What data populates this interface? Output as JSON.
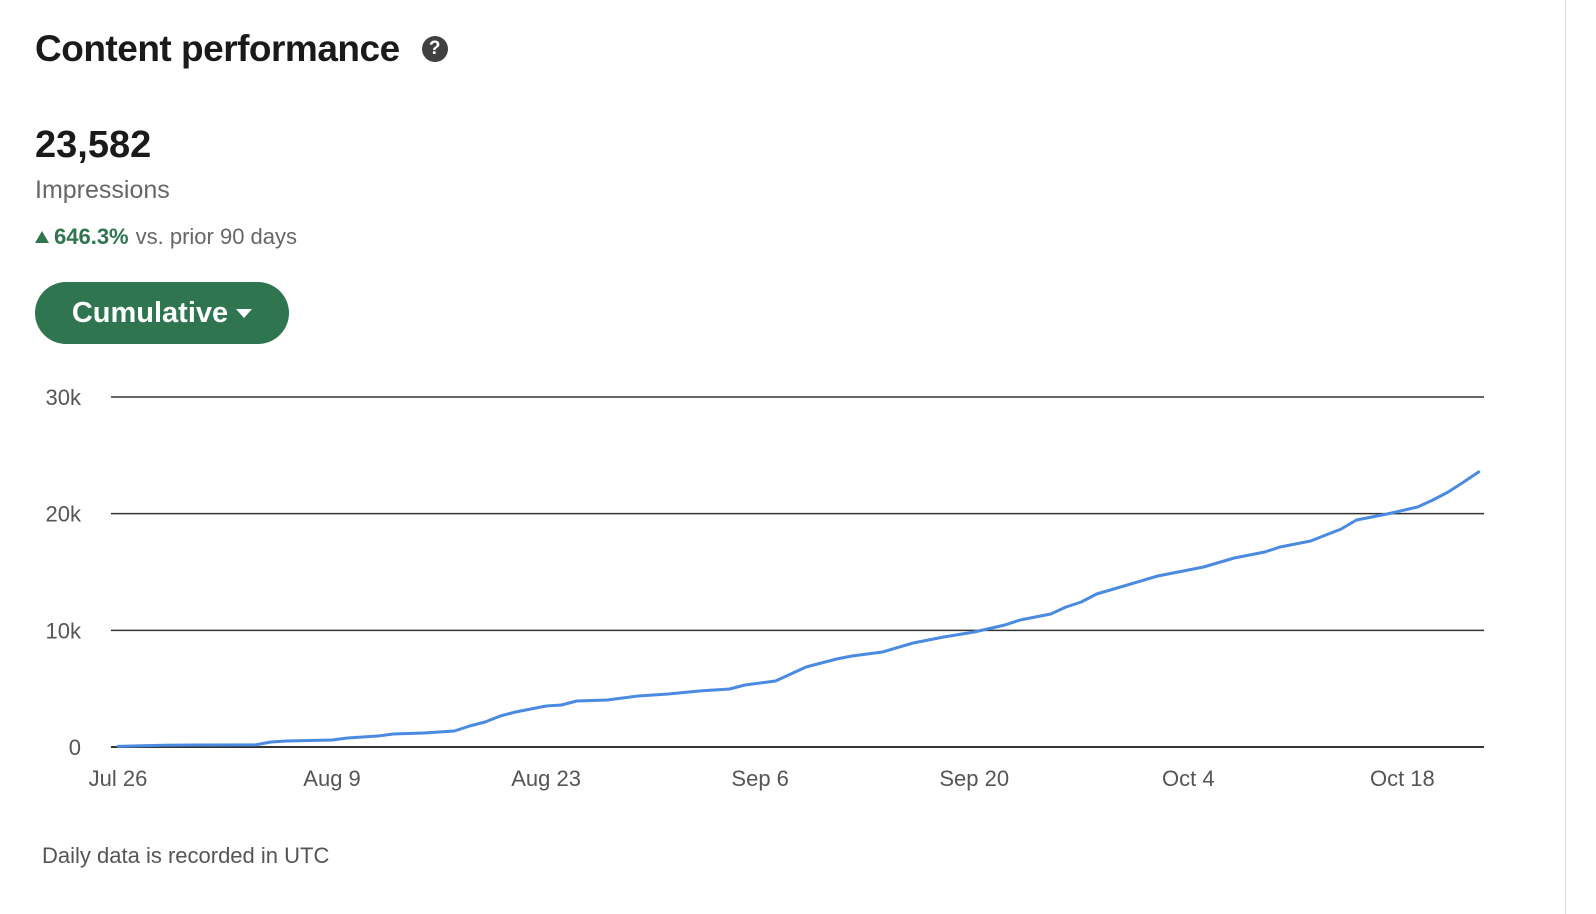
{
  "header": {
    "title": "Content performance",
    "help_icon": "question-circle-icon"
  },
  "summary": {
    "value": "23,582",
    "metric": "Impressions",
    "change": "646.3%",
    "change_direction": "up",
    "change_suffix": "vs. prior 90 days",
    "positive_color": "#2f7550"
  },
  "mode_button": {
    "label": "Cumulative",
    "icon": "caret-down-icon",
    "color": "#2f7550"
  },
  "footer": {
    "note": "Daily data is recorded in UTC"
  },
  "chart_data": {
    "type": "line",
    "title": "",
    "xlabel": "",
    "ylabel": "",
    "ylim": [
      0,
      30000
    ],
    "y_ticks": [
      {
        "value": 0,
        "label": "0"
      },
      {
        "value": 10000,
        "label": "10k"
      },
      {
        "value": 20000,
        "label": "20k"
      },
      {
        "value": 30000,
        "label": "30k"
      }
    ],
    "x_ticks": [
      "Jul 26",
      "Aug 9",
      "Aug 23",
      "Sep 6",
      "Sep 20",
      "Oct 4",
      "Oct 18"
    ],
    "grid": "horizontal",
    "line_color": "#4a8ae0",
    "series": [
      {
        "points": [
          [
            "Jul 26",
            50
          ],
          [
            "Jul 29",
            150
          ],
          [
            "Jul 31",
            170
          ],
          [
            "Aug 4",
            180
          ],
          [
            "Aug 5",
            430
          ],
          [
            "Aug 6",
            510
          ],
          [
            "Aug 9",
            600
          ],
          [
            "Aug 10",
            770
          ],
          [
            "Aug 12",
            940
          ],
          [
            "Aug 13",
            1110
          ],
          [
            "Aug 15",
            1200
          ],
          [
            "Aug 17",
            1370
          ],
          [
            "Aug 18",
            1800
          ],
          [
            "Aug 19",
            2140
          ],
          [
            "Aug 20",
            2660
          ],
          [
            "Aug 21",
            3000
          ],
          [
            "Aug 23",
            3510
          ],
          [
            "Aug 24",
            3600
          ],
          [
            "Aug 25",
            3940
          ],
          [
            "Aug 27",
            4030
          ],
          [
            "Aug 29",
            4370
          ],
          [
            "Aug 31",
            4540
          ],
          [
            "Sep 2",
            4800
          ],
          [
            "Sep 4",
            4970
          ],
          [
            "Sep 5",
            5310
          ],
          [
            "Sep 7",
            5660
          ],
          [
            "Sep 8",
            6260
          ],
          [
            "Sep 9",
            6860
          ],
          [
            "Sep 11",
            7540
          ],
          [
            "Sep 12",
            7800
          ],
          [
            "Sep 14",
            8140
          ],
          [
            "Sep 16",
            8910
          ],
          [
            "Sep 18",
            9430
          ],
          [
            "Sep 20",
            9860
          ],
          [
            "Sep 22",
            10460
          ],
          [
            "Sep 23",
            10890
          ],
          [
            "Sep 25",
            11400
          ],
          [
            "Sep 26",
            12000
          ],
          [
            "Sep 27",
            12430
          ],
          [
            "Sep 28",
            13110
          ],
          [
            "Sep 30",
            13880
          ],
          [
            "Oct 2",
            14660
          ],
          [
            "Oct 3",
            14910
          ],
          [
            "Oct 5",
            15430
          ],
          [
            "Oct 7",
            16200
          ],
          [
            "Oct 9",
            16710
          ],
          [
            "Oct 10",
            17140
          ],
          [
            "Oct 12",
            17660
          ],
          [
            "Oct 14",
            18690
          ],
          [
            "Oct 15",
            19460
          ],
          [
            "Oct 17",
            19970
          ],
          [
            "Oct 19",
            20570
          ],
          [
            "Oct 20",
            21170
          ],
          [
            "Oct 21",
            21860
          ],
          [
            "Oct 22",
            22710
          ],
          [
            "Oct 23",
            23582
          ]
        ]
      }
    ]
  }
}
